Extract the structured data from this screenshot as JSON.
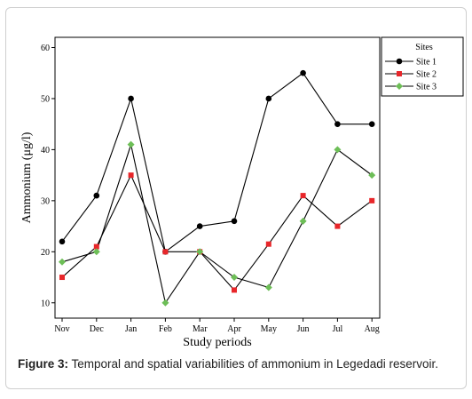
{
  "caption": {
    "label": "Figure 3:",
    "text": "Temporal and spatial variabilities of ammonium in Legedadi reservoir."
  },
  "chart_data": {
    "type": "line",
    "xlabel": "Study periods",
    "ylabel": "Ammonium (μg/l)",
    "categories": [
      "Nov",
      "Dec",
      "Jan",
      "Feb",
      "Mar",
      "Apr",
      "May",
      "Jun",
      "Jul",
      "Aug"
    ],
    "ylim": [
      7,
      62
    ],
    "yticks": [
      10,
      20,
      30,
      40,
      50,
      60
    ],
    "grid": false,
    "legend_title": "Sites",
    "legend_position": "top-right",
    "series": [
      {
        "name": "Site 1",
        "marker": "circle",
        "color": "#000000",
        "values": [
          22,
          31,
          50,
          20,
          25,
          26,
          50,
          55,
          45,
          45
        ]
      },
      {
        "name": "Site 2",
        "marker": "square",
        "color": "#e8262a",
        "values": [
          15,
          21,
          35,
          20,
          20,
          12.5,
          21.5,
          31,
          25,
          30
        ]
      },
      {
        "name": "Site 3",
        "marker": "diamond",
        "color": "#6dbe57",
        "values": [
          18,
          20,
          41,
          10,
          20,
          15,
          13,
          26,
          40,
          35
        ]
      }
    ]
  }
}
